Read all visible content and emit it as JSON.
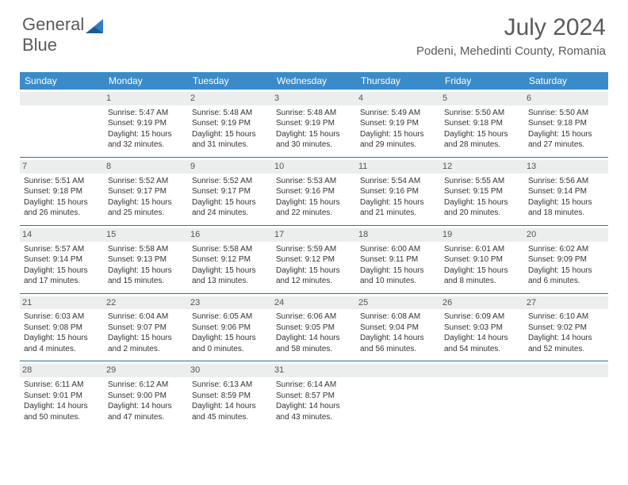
{
  "logo": {
    "textGeneral": "General",
    "textBlue": "Blue"
  },
  "header": {
    "monthTitle": "July 2024",
    "location": "Podeni, Mehedinti County, Romania"
  },
  "colors": {
    "headerBlue": "#3b8bc9",
    "rowBorder": "#2f6fa8",
    "dayNumBg": "#eceded",
    "grayText": "#5a5a5a",
    "logoBlue": "#2f7fc1"
  },
  "weekdays": [
    "Sunday",
    "Monday",
    "Tuesday",
    "Wednesday",
    "Thursday",
    "Friday",
    "Saturday"
  ],
  "weeks": [
    [
      {
        "num": "",
        "sunrise": "",
        "sunset": "",
        "daylight": ""
      },
      {
        "num": "1",
        "sunrise": "Sunrise: 5:47 AM",
        "sunset": "Sunset: 9:19 PM",
        "daylight": "Daylight: 15 hours and 32 minutes."
      },
      {
        "num": "2",
        "sunrise": "Sunrise: 5:48 AM",
        "sunset": "Sunset: 9:19 PM",
        "daylight": "Daylight: 15 hours and 31 minutes."
      },
      {
        "num": "3",
        "sunrise": "Sunrise: 5:48 AM",
        "sunset": "Sunset: 9:19 PM",
        "daylight": "Daylight: 15 hours and 30 minutes."
      },
      {
        "num": "4",
        "sunrise": "Sunrise: 5:49 AM",
        "sunset": "Sunset: 9:19 PM",
        "daylight": "Daylight: 15 hours and 29 minutes."
      },
      {
        "num": "5",
        "sunrise": "Sunrise: 5:50 AM",
        "sunset": "Sunset: 9:18 PM",
        "daylight": "Daylight: 15 hours and 28 minutes."
      },
      {
        "num": "6",
        "sunrise": "Sunrise: 5:50 AM",
        "sunset": "Sunset: 9:18 PM",
        "daylight": "Daylight: 15 hours and 27 minutes."
      }
    ],
    [
      {
        "num": "7",
        "sunrise": "Sunrise: 5:51 AM",
        "sunset": "Sunset: 9:18 PM",
        "daylight": "Daylight: 15 hours and 26 minutes."
      },
      {
        "num": "8",
        "sunrise": "Sunrise: 5:52 AM",
        "sunset": "Sunset: 9:17 PM",
        "daylight": "Daylight: 15 hours and 25 minutes."
      },
      {
        "num": "9",
        "sunrise": "Sunrise: 5:52 AM",
        "sunset": "Sunset: 9:17 PM",
        "daylight": "Daylight: 15 hours and 24 minutes."
      },
      {
        "num": "10",
        "sunrise": "Sunrise: 5:53 AM",
        "sunset": "Sunset: 9:16 PM",
        "daylight": "Daylight: 15 hours and 22 minutes."
      },
      {
        "num": "11",
        "sunrise": "Sunrise: 5:54 AM",
        "sunset": "Sunset: 9:16 PM",
        "daylight": "Daylight: 15 hours and 21 minutes."
      },
      {
        "num": "12",
        "sunrise": "Sunrise: 5:55 AM",
        "sunset": "Sunset: 9:15 PM",
        "daylight": "Daylight: 15 hours and 20 minutes."
      },
      {
        "num": "13",
        "sunrise": "Sunrise: 5:56 AM",
        "sunset": "Sunset: 9:14 PM",
        "daylight": "Daylight: 15 hours and 18 minutes."
      }
    ],
    [
      {
        "num": "14",
        "sunrise": "Sunrise: 5:57 AM",
        "sunset": "Sunset: 9:14 PM",
        "daylight": "Daylight: 15 hours and 17 minutes."
      },
      {
        "num": "15",
        "sunrise": "Sunrise: 5:58 AM",
        "sunset": "Sunset: 9:13 PM",
        "daylight": "Daylight: 15 hours and 15 minutes."
      },
      {
        "num": "16",
        "sunrise": "Sunrise: 5:58 AM",
        "sunset": "Sunset: 9:12 PM",
        "daylight": "Daylight: 15 hours and 13 minutes."
      },
      {
        "num": "17",
        "sunrise": "Sunrise: 5:59 AM",
        "sunset": "Sunset: 9:12 PM",
        "daylight": "Daylight: 15 hours and 12 minutes."
      },
      {
        "num": "18",
        "sunrise": "Sunrise: 6:00 AM",
        "sunset": "Sunset: 9:11 PM",
        "daylight": "Daylight: 15 hours and 10 minutes."
      },
      {
        "num": "19",
        "sunrise": "Sunrise: 6:01 AM",
        "sunset": "Sunset: 9:10 PM",
        "daylight": "Daylight: 15 hours and 8 minutes."
      },
      {
        "num": "20",
        "sunrise": "Sunrise: 6:02 AM",
        "sunset": "Sunset: 9:09 PM",
        "daylight": "Daylight: 15 hours and 6 minutes."
      }
    ],
    [
      {
        "num": "21",
        "sunrise": "Sunrise: 6:03 AM",
        "sunset": "Sunset: 9:08 PM",
        "daylight": "Daylight: 15 hours and 4 minutes."
      },
      {
        "num": "22",
        "sunrise": "Sunrise: 6:04 AM",
        "sunset": "Sunset: 9:07 PM",
        "daylight": "Daylight: 15 hours and 2 minutes."
      },
      {
        "num": "23",
        "sunrise": "Sunrise: 6:05 AM",
        "sunset": "Sunset: 9:06 PM",
        "daylight": "Daylight: 15 hours and 0 minutes."
      },
      {
        "num": "24",
        "sunrise": "Sunrise: 6:06 AM",
        "sunset": "Sunset: 9:05 PM",
        "daylight": "Daylight: 14 hours and 58 minutes."
      },
      {
        "num": "25",
        "sunrise": "Sunrise: 6:08 AM",
        "sunset": "Sunset: 9:04 PM",
        "daylight": "Daylight: 14 hours and 56 minutes."
      },
      {
        "num": "26",
        "sunrise": "Sunrise: 6:09 AM",
        "sunset": "Sunset: 9:03 PM",
        "daylight": "Daylight: 14 hours and 54 minutes."
      },
      {
        "num": "27",
        "sunrise": "Sunrise: 6:10 AM",
        "sunset": "Sunset: 9:02 PM",
        "daylight": "Daylight: 14 hours and 52 minutes."
      }
    ],
    [
      {
        "num": "28",
        "sunrise": "Sunrise: 6:11 AM",
        "sunset": "Sunset: 9:01 PM",
        "daylight": "Daylight: 14 hours and 50 minutes."
      },
      {
        "num": "29",
        "sunrise": "Sunrise: 6:12 AM",
        "sunset": "Sunset: 9:00 PM",
        "daylight": "Daylight: 14 hours and 47 minutes."
      },
      {
        "num": "30",
        "sunrise": "Sunrise: 6:13 AM",
        "sunset": "Sunset: 8:59 PM",
        "daylight": "Daylight: 14 hours and 45 minutes."
      },
      {
        "num": "31",
        "sunrise": "Sunrise: 6:14 AM",
        "sunset": "Sunset: 8:57 PM",
        "daylight": "Daylight: 14 hours and 43 minutes."
      },
      {
        "num": "",
        "sunrise": "",
        "sunset": "",
        "daylight": ""
      },
      {
        "num": "",
        "sunrise": "",
        "sunset": "",
        "daylight": ""
      },
      {
        "num": "",
        "sunrise": "",
        "sunset": "",
        "daylight": ""
      }
    ]
  ]
}
